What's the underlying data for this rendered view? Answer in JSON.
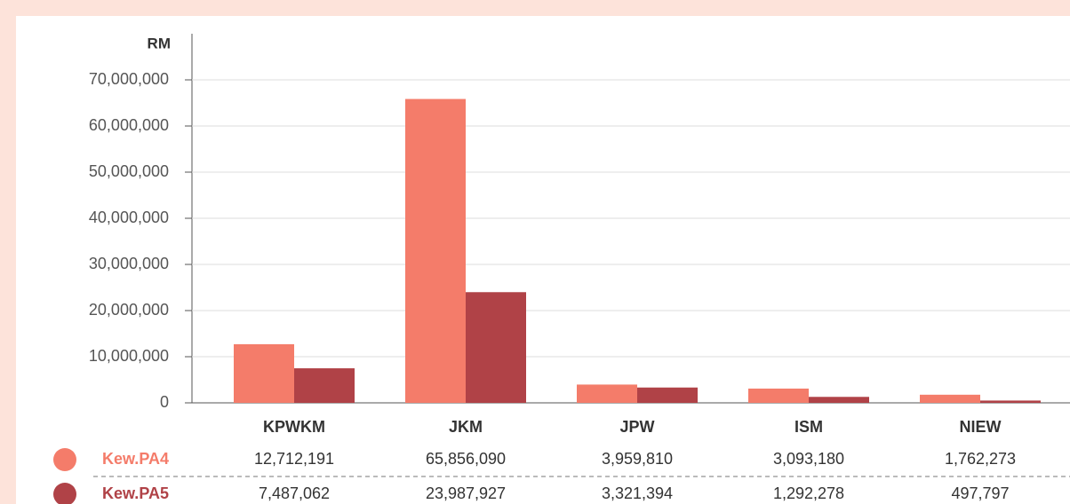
{
  "chart_data": {
    "type": "bar",
    "ylabel": "RM",
    "categories": [
      "KPWKM",
      "JKM",
      "JPW",
      "ISM",
      "NIEW"
    ],
    "series": [
      {
        "name": "Kew.PA4",
        "color": "#f47c6a",
        "values": [
          12712191,
          65856090,
          3959810,
          3093180,
          1762273
        ],
        "value_labels": [
          "12,712,191",
          "65,856,090",
          "3,959,810",
          "3,093,180",
          "1,762,273"
        ]
      },
      {
        "name": "Kew.PA5",
        "color": "#b04247",
        "values": [
          7487062,
          23987927,
          3321394,
          1292278,
          497797
        ],
        "value_labels": [
          "7,487,062",
          "23,987,927",
          "3,321,394",
          "1,292,278",
          "497,797"
        ]
      }
    ],
    "ylim": [
      0,
      70000000
    ],
    "yticks": [
      0,
      {
        "value": 10000000,
        "label": "10,000,000"
      },
      {
        "value": 20000000,
        "label": "20,000,000"
      },
      {
        "value": 30000000,
        "label": "30,000,000"
      },
      {
        "value": 40000000,
        "label": "40,000,000"
      },
      {
        "value": 50000000,
        "label": "50,000,000"
      },
      {
        "value": 60000000,
        "label": "60,000,000"
      },
      {
        "value": 70000000,
        "label": "70,000,000"
      }
    ],
    "grid": true
  }
}
